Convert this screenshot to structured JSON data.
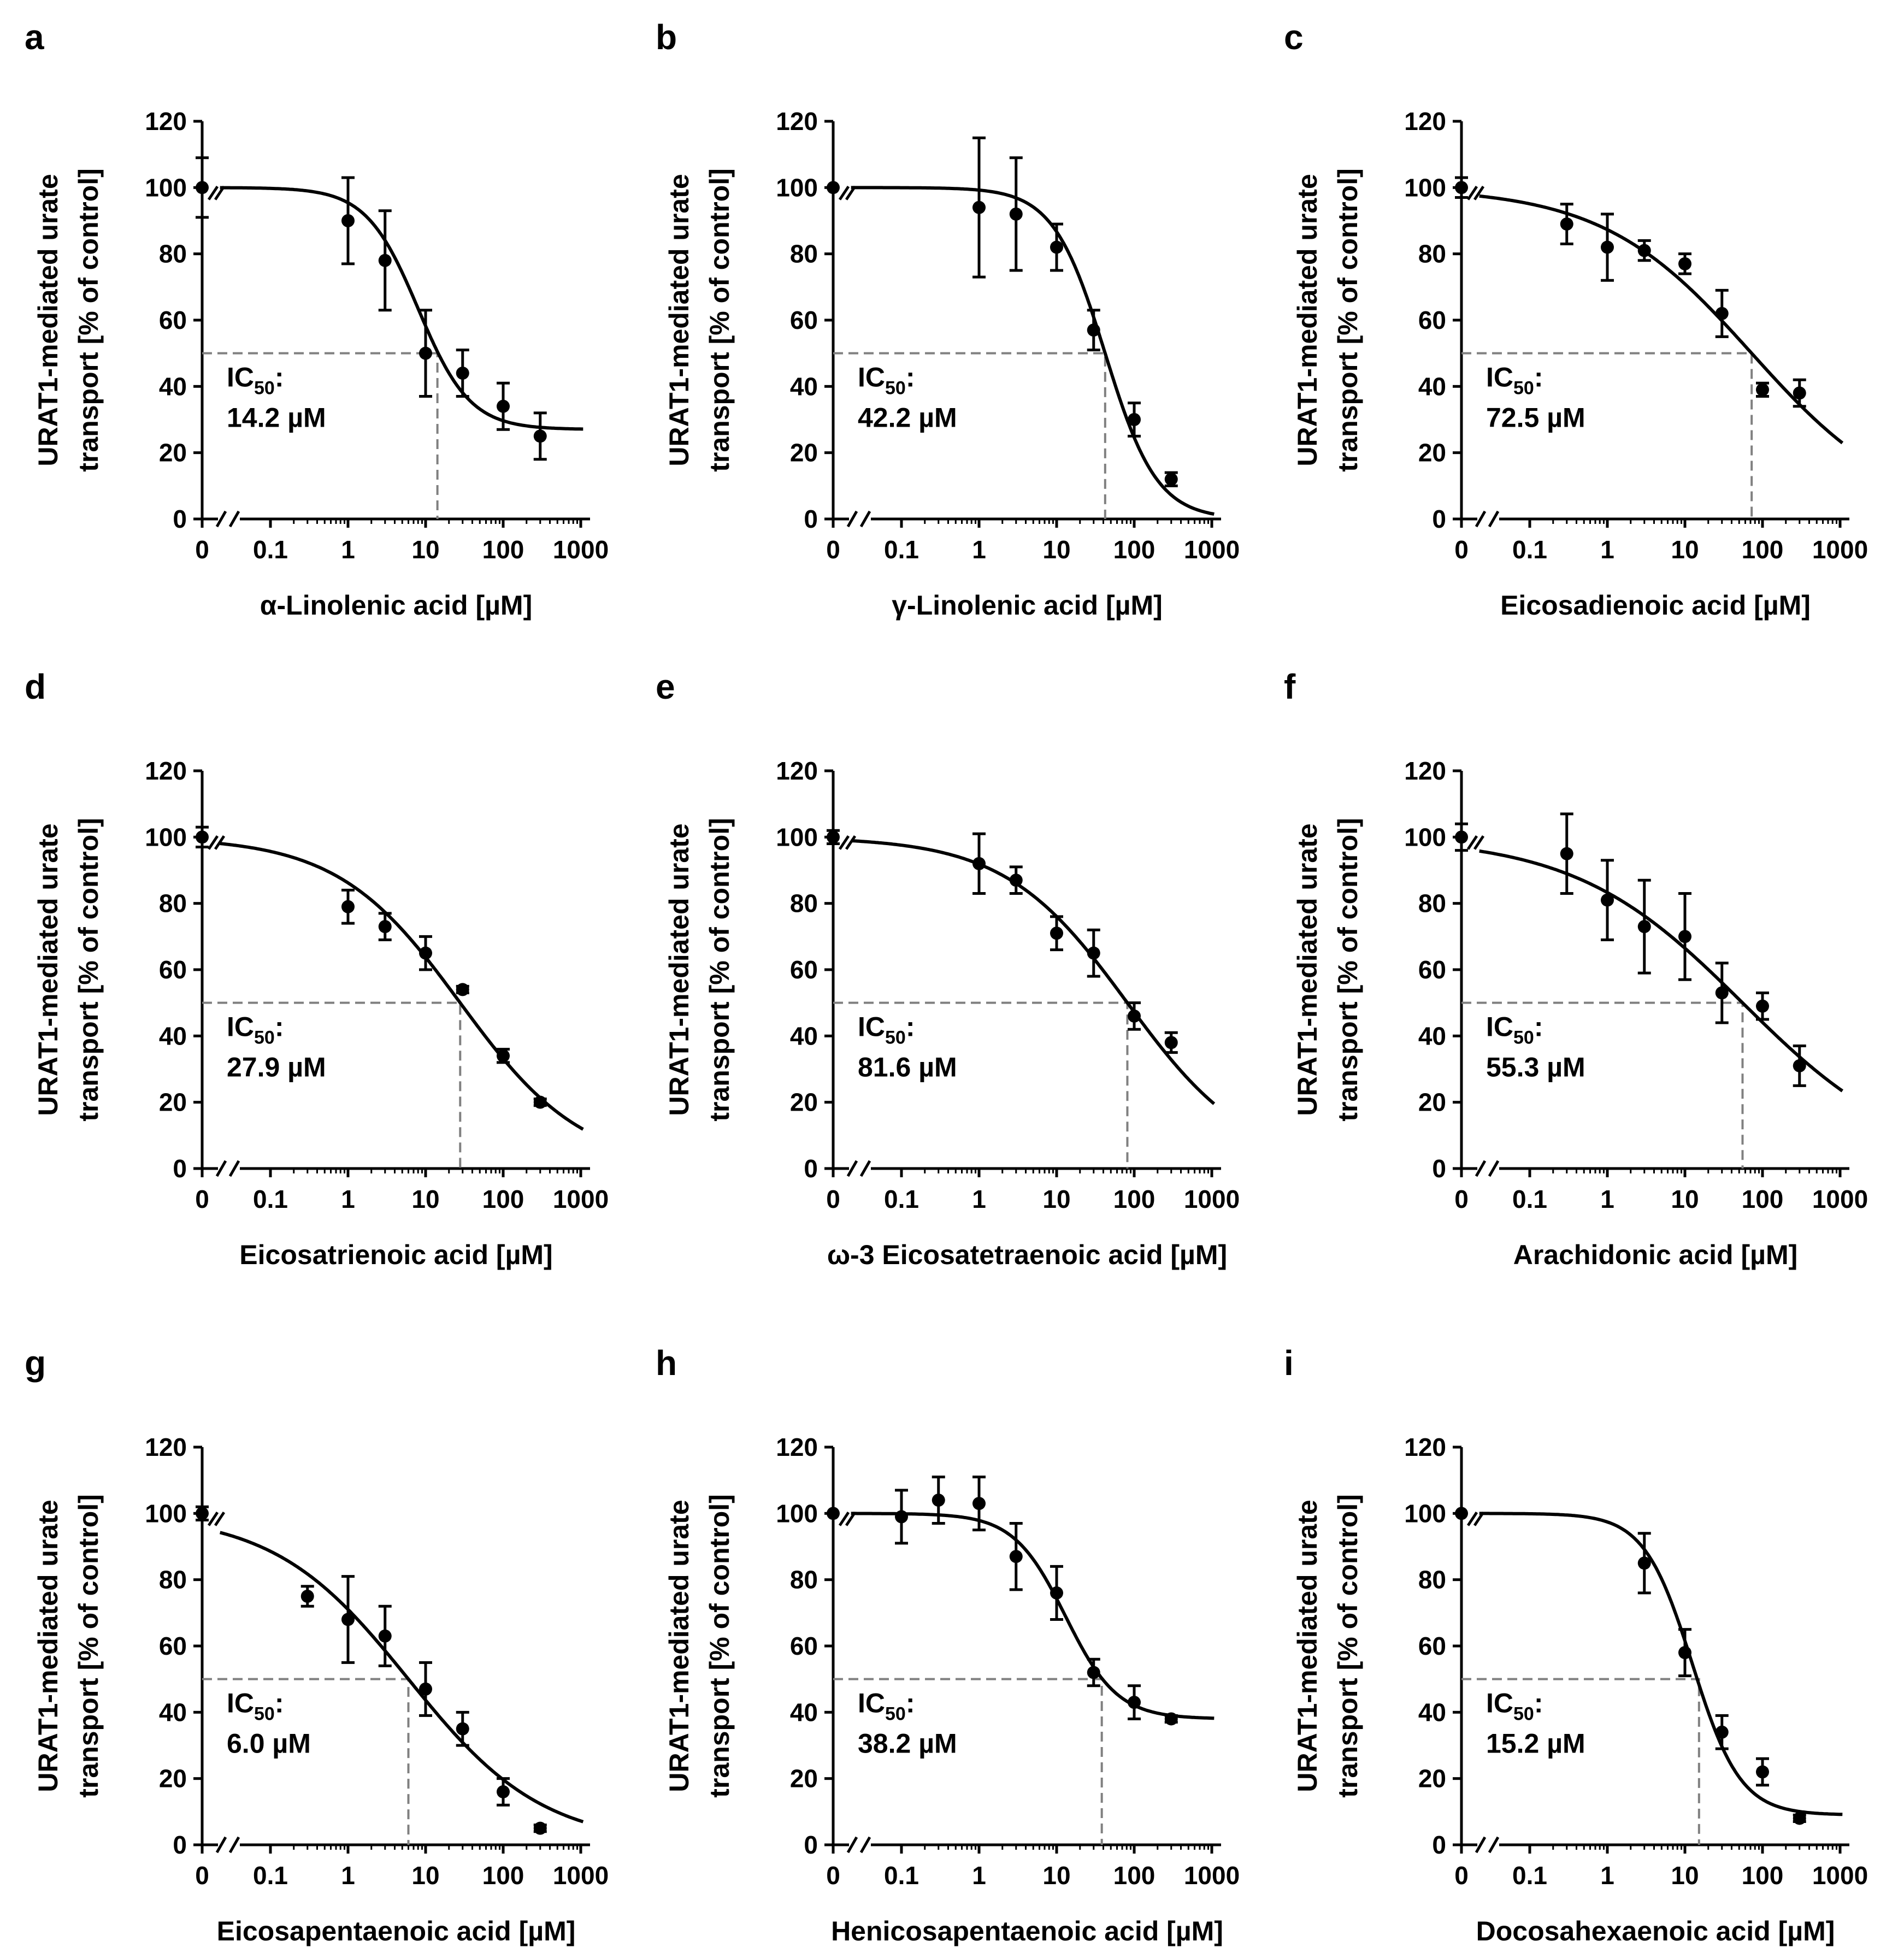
{
  "chart_data": [
    {
      "type": "scatter",
      "panel_letter": "a",
      "ylabel_line1": "URAT1-mediated urate",
      "ylabel_line2": "transport [% of control]",
      "xlabel": "α-Linolenic acid [µM]",
      "yticks": [
        0,
        20,
        40,
        60,
        80,
        100,
        120
      ],
      "xtick_labels": [
        "0",
        "0.1",
        "1",
        "10",
        "100",
        "1000"
      ],
      "ylim": [
        0,
        120
      ],
      "x_log_range": [
        0.02,
        1300
      ],
      "ic50_label": "IC",
      "ic50_sub": "50",
      "ic50_colon": ":",
      "ic50_value": "14.2 µM",
      "ic50": 14.2,
      "fit": {
        "bottom": 27,
        "top": 100,
        "ec50": 8,
        "hill": 1.3
      },
      "points": [
        {
          "x": 0,
          "y": 100,
          "err": 9
        },
        {
          "x": 1,
          "y": 90,
          "err": 13
        },
        {
          "x": 3,
          "y": 78,
          "err": 15
        },
        {
          "x": 10,
          "y": 50,
          "err": 13
        },
        {
          "x": 30,
          "y": 44,
          "err": 7
        },
        {
          "x": 100,
          "y": 34,
          "err": 7
        },
        {
          "x": 300,
          "y": 25,
          "err": 7
        }
      ]
    },
    {
      "type": "scatter",
      "panel_letter": "b",
      "ylabel_line1": "URAT1-mediated urate",
      "ylabel_line2": "transport [% of control]",
      "xlabel": "γ-Linolenic acid [µM]",
      "yticks": [
        0,
        20,
        40,
        60,
        80,
        100,
        120
      ],
      "xtick_labels": [
        "0",
        "0.1",
        "1",
        "10",
        "100",
        "1000"
      ],
      "ylim": [
        0,
        120
      ],
      "x_log_range": [
        0.02,
        1300
      ],
      "ic50_label": "IC",
      "ic50_sub": "50",
      "ic50_colon": ":",
      "ic50_value": "42.2 µM",
      "ic50": 42.2,
      "fit": {
        "bottom": 0,
        "top": 100,
        "ec50": 42.2,
        "hill": 1.3
      },
      "points": [
        {
          "x": 0,
          "y": 100,
          "err": 0
        },
        {
          "x": 1,
          "y": 94,
          "err": 21
        },
        {
          "x": 3,
          "y": 92,
          "err": 17
        },
        {
          "x": 10,
          "y": 82,
          "err": 7
        },
        {
          "x": 30,
          "y": 57,
          "err": 6
        },
        {
          "x": 100,
          "y": 30,
          "err": 5
        },
        {
          "x": 300,
          "y": 12,
          "err": 2
        }
      ]
    },
    {
      "type": "scatter",
      "panel_letter": "c",
      "ylabel_line1": "URAT1-mediated urate",
      "ylabel_line2": "transport [% of control]",
      "xlabel": "Eicosadienoic acid [µM]",
      "yticks": [
        0,
        20,
        40,
        60,
        80,
        100,
        120
      ],
      "xtick_labels": [
        "0",
        "0.1",
        "1",
        "10",
        "100",
        "1000"
      ],
      "ylim": [
        0,
        120
      ],
      "x_log_range": [
        0.02,
        1300
      ],
      "ic50_label": "IC",
      "ic50_sub": "50",
      "ic50_colon": ":",
      "ic50_value": "72.5 µM",
      "ic50": 72.5,
      "fit": {
        "bottom": 0,
        "top": 100,
        "ec50": 72.5,
        "hill": 0.45
      },
      "points": [
        {
          "x": 0,
          "y": 100,
          "err": 3
        },
        {
          "x": 0.3,
          "y": 89,
          "err": 6
        },
        {
          "x": 1,
          "y": 82,
          "err": 10
        },
        {
          "x": 3,
          "y": 81,
          "err": 3
        },
        {
          "x": 10,
          "y": 77,
          "err": 3
        },
        {
          "x": 30,
          "y": 62,
          "err": 7
        },
        {
          "x": 100,
          "y": 39,
          "err": 2
        },
        {
          "x": 300,
          "y": 38,
          "err": 4
        }
      ]
    },
    {
      "type": "scatter",
      "panel_letter": "d",
      "ylabel_line1": "URAT1-mediated urate",
      "ylabel_line2": "transport [% of control]",
      "xlabel": "Eicosatrienoic acid [µM]",
      "yticks": [
        0,
        20,
        40,
        60,
        80,
        100,
        120
      ],
      "xtick_labels": [
        "0",
        "0.1",
        "1",
        "10",
        "100",
        "1000"
      ],
      "ylim": [
        0,
        120
      ],
      "x_log_range": [
        0.02,
        1300
      ],
      "ic50_label": "IC",
      "ic50_sub": "50",
      "ic50_colon": ":",
      "ic50_value": "27.9 µM",
      "ic50": 27.9,
      "fit": {
        "bottom": 0,
        "top": 100,
        "ec50": 27.9,
        "hill": 0.55
      },
      "points": [
        {
          "x": 0,
          "y": 100,
          "err": 3
        },
        {
          "x": 1,
          "y": 79,
          "err": 5
        },
        {
          "x": 3,
          "y": 73,
          "err": 4
        },
        {
          "x": 10,
          "y": 65,
          "err": 5
        },
        {
          "x": 30,
          "y": 54,
          "err": 1
        },
        {
          "x": 100,
          "y": 34,
          "err": 2
        },
        {
          "x": 300,
          "y": 20,
          "err": 1
        }
      ]
    },
    {
      "type": "scatter",
      "panel_letter": "e",
      "ylabel_line1": "URAT1-mediated urate",
      "ylabel_line2": "transport [% of control]",
      "xlabel": "ω-3 Eicosatetraenoic acid [µM]",
      "yticks": [
        0,
        20,
        40,
        60,
        80,
        100,
        120
      ],
      "xtick_labels": [
        "0",
        "0.1",
        "1",
        "10",
        "100",
        "1000"
      ],
      "ylim": [
        0,
        120
      ],
      "x_log_range": [
        0.02,
        1300
      ],
      "ic50_label": "IC",
      "ic50_sub": "50",
      "ic50_colon": ":",
      "ic50_value": "81.6 µM",
      "ic50": 81.6,
      "fit": {
        "bottom": 0,
        "top": 100,
        "ec50": 81.6,
        "hill": 0.55
      },
      "points": [
        {
          "x": 0,
          "y": 100,
          "err": 2
        },
        {
          "x": 1,
          "y": 92,
          "err": 9
        },
        {
          "x": 3,
          "y": 87,
          "err": 4
        },
        {
          "x": 10,
          "y": 71,
          "err": 5
        },
        {
          "x": 30,
          "y": 65,
          "err": 7
        },
        {
          "x": 100,
          "y": 46,
          "err": 4
        },
        {
          "x": 300,
          "y": 38,
          "err": 3
        }
      ]
    },
    {
      "type": "scatter",
      "panel_letter": "f",
      "ylabel_line1": "URAT1-mediated urate",
      "ylabel_line2": "transport [% of control]",
      "xlabel": "Arachidonic acid [µM]",
      "yticks": [
        0,
        20,
        40,
        60,
        80,
        100,
        120
      ],
      "xtick_labels": [
        "0",
        "0.1",
        "1",
        "10",
        "100",
        "1000"
      ],
      "ylim": [
        0,
        120
      ],
      "x_log_range": [
        0.02,
        1300
      ],
      "ic50_label": "IC",
      "ic50_sub": "50",
      "ic50_colon": ":",
      "ic50_value": "55.3 µM",
      "ic50": 55.3,
      "fit": {
        "bottom": 0,
        "top": 100,
        "ec50": 55.3,
        "hill": 0.4
      },
      "points": [
        {
          "x": 0,
          "y": 100,
          "err": 4
        },
        {
          "x": 0.3,
          "y": 95,
          "err": 12
        },
        {
          "x": 1,
          "y": 81,
          "err": 12
        },
        {
          "x": 3,
          "y": 73,
          "err": 14
        },
        {
          "x": 10,
          "y": 70,
          "err": 13
        },
        {
          "x": 30,
          "y": 53,
          "err": 9
        },
        {
          "x": 100,
          "y": 49,
          "err": 4
        },
        {
          "x": 300,
          "y": 31,
          "err": 6
        }
      ]
    },
    {
      "type": "scatter",
      "panel_letter": "g",
      "ylabel_line1": "URAT1-mediated urate",
      "ylabel_line2": "transport [% of control]",
      "xlabel": "Eicosapentaenoic acid [µM]",
      "yticks": [
        0,
        20,
        40,
        60,
        80,
        100,
        120
      ],
      "xtick_labels": [
        "0",
        "0.1",
        "1",
        "10",
        "100",
        "1000"
      ],
      "ylim": [
        0,
        120
      ],
      "x_log_range": [
        0.02,
        1300
      ],
      "ic50_label": "IC",
      "ic50_sub": "50",
      "ic50_colon": ":",
      "ic50_value": "6.0 µM",
      "ic50": 6.0,
      "fit": {
        "bottom": 0,
        "top": 100,
        "ec50": 6.0,
        "hill": 0.5
      },
      "points": [
        {
          "x": 0,
          "y": 100,
          "err": 2
        },
        {
          "x": 0.3,
          "y": 75,
          "err": 3
        },
        {
          "x": 1,
          "y": 68,
          "err": 13
        },
        {
          "x": 3,
          "y": 63,
          "err": 9
        },
        {
          "x": 10,
          "y": 47,
          "err": 8
        },
        {
          "x": 30,
          "y": 35,
          "err": 5
        },
        {
          "x": 100,
          "y": 16,
          "err": 4
        },
        {
          "x": 300,
          "y": 5,
          "err": 1
        }
      ]
    },
    {
      "type": "scatter",
      "panel_letter": "h",
      "ylabel_line1": "URAT1-mediated urate",
      "ylabel_line2": "transport [% of control]",
      "xlabel": "Henicosapentaenoic acid [µM]",
      "yticks": [
        0,
        20,
        40,
        60,
        80,
        100,
        120
      ],
      "xtick_labels": [
        "0",
        "0.1",
        "1",
        "10",
        "100",
        "1000"
      ],
      "ylim": [
        0,
        120
      ],
      "x_log_range": [
        0.02,
        1300
      ],
      "ic50_label": "IC",
      "ic50_sub": "50",
      "ic50_colon": ":",
      "ic50_value": "38.2 µM",
      "ic50": 38.2,
      "fit": {
        "bottom": 38,
        "top": 100,
        "ec50": 13,
        "hill": 1.3
      },
      "points": [
        {
          "x": 0,
          "y": 100,
          "err": 0
        },
        {
          "x": 0.1,
          "y": 99,
          "err": 8
        },
        {
          "x": 0.3,
          "y": 104,
          "err": 7
        },
        {
          "x": 1,
          "y": 103,
          "err": 8
        },
        {
          "x": 3,
          "y": 87,
          "err": 10
        },
        {
          "x": 10,
          "y": 76,
          "err": 8
        },
        {
          "x": 30,
          "y": 52,
          "err": 4
        },
        {
          "x": 100,
          "y": 43,
          "err": 5
        },
        {
          "x": 300,
          "y": 38,
          "err": 1
        }
      ]
    },
    {
      "type": "scatter",
      "panel_letter": "i",
      "ylabel_line1": "URAT1-mediated urate",
      "ylabel_line2": "transport [% of control]",
      "xlabel": "Docosahexaenoic acid [µM]",
      "yticks": [
        0,
        20,
        40,
        60,
        80,
        100,
        120
      ],
      "xtick_labels": [
        "0",
        "0.1",
        "1",
        "10",
        "100",
        "1000"
      ],
      "ylim": [
        0,
        120
      ],
      "x_log_range": [
        0.02,
        1300
      ],
      "ic50_label": "IC",
      "ic50_sub": "50",
      "ic50_colon": ":",
      "ic50_value": "15.2 µM",
      "ic50": 15.2,
      "fit": {
        "bottom": 9,
        "top": 100,
        "ec50": 12.5,
        "hill": 1.4
      },
      "points": [
        {
          "x": 0,
          "y": 100,
          "err": 0
        },
        {
          "x": 3,
          "y": 85,
          "err": 9
        },
        {
          "x": 10,
          "y": 58,
          "err": 7
        },
        {
          "x": 30,
          "y": 34,
          "err": 5
        },
        {
          "x": 100,
          "y": 22,
          "err": 4
        },
        {
          "x": 300,
          "y": 8,
          "err": 1
        }
      ]
    }
  ]
}
